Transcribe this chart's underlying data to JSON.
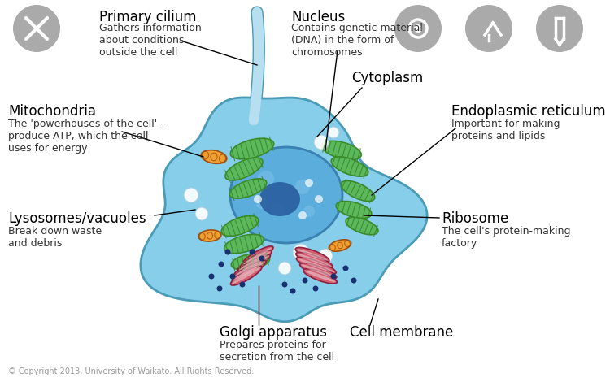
{
  "bg_color": "#ffffff",
  "cell_color": "#87CEEB",
  "cell_outline": "#4a9bb5",
  "nucleus_color": "#5b9bd5",
  "nucleus_outline": "#2e75b6",
  "nucleolus_color": "#2055a0",
  "chloroplast_color": "#3a8a2a",
  "chloroplast_light": "#5cb85c",
  "mitochondria_color": "#e8820a",
  "mitochondria_outline": "#8b4513",
  "golgi_color": "#c05070",
  "golgi_light": "#e08090",
  "ribosome_dot_color": "#1a3070",
  "labels": {
    "primary_cilium": "Primary cilium",
    "primary_cilium_desc": "Gathers information\nabout conditions\noutside the cell",
    "nucleus": "Nucleus",
    "nucleus_desc": "Contains genetic material\n(DNA) in the form of\nchromosomes",
    "cytoplasm": "Cytoplasm",
    "endoplasmic_reticulum": "Endoplasmic reticulum",
    "er_desc": "Important for making\nproteins and lipids",
    "mitochondria": "Mitochondria",
    "mitochondria_desc": "The 'powerhouses of the cell' -\nproduce ATP, which the cell\nuses for energy",
    "lysosomes": "Lysosomes/vacuoles",
    "lysosomes_desc": "Break down waste\nand debris",
    "ribosome": "Ribosome",
    "ribosome_desc": "The cell's protein-making\nfactory",
    "golgi": "Golgi apparatus",
    "golgi_desc": "Prepares proteins for\nsecretion from the cell",
    "cell_membrane": "Cell membrane"
  },
  "label_fontsize": 12,
  "desc_fontsize": 9,
  "icon_color": "#aaaaaa",
  "copyright": "© Copyright 2013, University of Waikato. All Rights Reserved."
}
